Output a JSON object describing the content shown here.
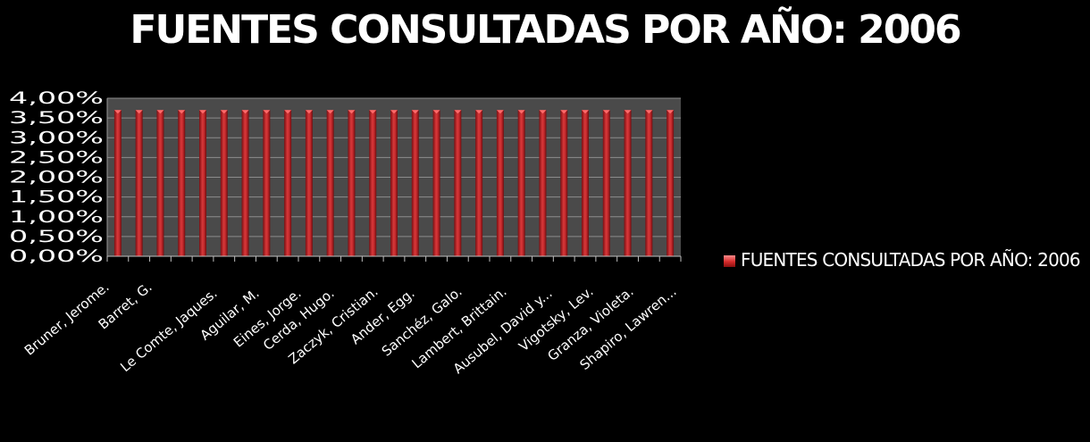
{
  "chart_data": {
    "type": "bar",
    "title": "FUENTES CONSULTADAS POR AÑO:  2006",
    "xlabel": "",
    "ylabel": "",
    "ylim": [
      0,
      4
    ],
    "yticks": [
      "0,00%",
      "0,50%",
      "1,00%",
      "1,50%",
      "2,00%",
      "2,50%",
      "3,00%",
      "3,50%",
      "4,00%"
    ],
    "tick_labels": [
      "Bruner, Jerome.",
      "Barret, G.",
      "Le Comte, Jaques.",
      "Aguilar, M.",
      "Eines, Jorge.",
      "Cerda, Hugo.",
      "Zaczyk, Cristian.",
      "Ander, Egg.",
      "Sanchéz, Galo.",
      "Lambert, Brittain.",
      "Ausubel, David y...",
      "Vigotsky, Lev.",
      "Granza, Violeta.",
      "Shapiro, Lawren..."
    ],
    "num_bars": 27,
    "values": [
      3.7,
      3.7,
      3.7,
      3.7,
      3.7,
      3.7,
      3.7,
      3.7,
      3.7,
      3.7,
      3.7,
      3.7,
      3.7,
      3.7,
      3.7,
      3.7,
      3.7,
      3.7,
      3.7,
      3.7,
      3.7,
      3.7,
      3.7,
      3.7,
      3.7,
      3.7,
      3.7
    ],
    "grid": true,
    "legend_position": "right",
    "series": [
      {
        "name": "FUENTES CONSULTADAS POR AÑO: 2006",
        "color": "#c0282b"
      }
    ],
    "colors": {
      "background": "#000000",
      "plot_area": "#4a4a4a",
      "gridline": "#8c8c8c",
      "bar": "#c0282b"
    }
  }
}
